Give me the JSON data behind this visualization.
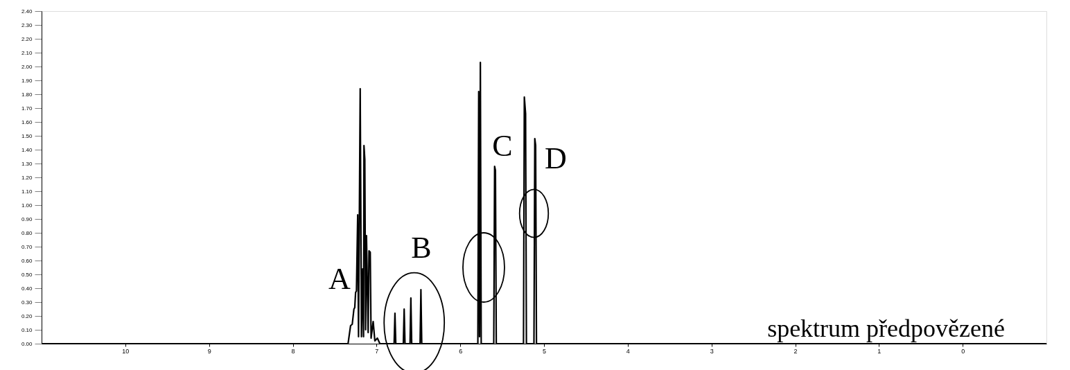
{
  "chart_data": {
    "type": "line",
    "x": [
      11,
      7.34,
      7.31,
      7.29,
      7.27,
      7.26,
      7.25,
      7.24,
      7.225,
      7.215,
      7.195,
      7.18,
      7.165,
      7.155,
      7.15,
      7.14,
      7.13,
      7.12,
      7.1,
      7.09,
      7.075,
      7.065,
      7.04,
      7.02,
      6.99,
      6.96,
      6.79,
      6.78,
      6.77,
      6.68,
      6.67,
      6.66,
      6.6,
      6.59,
      6.58,
      6.48,
      6.47,
      6.46,
      5.79,
      5.78,
      5.77,
      5.76,
      5.75,
      5.6,
      5.59,
      5.58,
      5.57,
      5.245,
      5.235,
      5.22,
      5.21,
      5.12,
      5.11,
      5.1,
      5.09,
      -1
    ],
    "series": [
      {
        "color": "#000000",
        "values": [
          0,
          0,
          0.13,
          0.14,
          0.25,
          0.26,
          0.37,
          0.38,
          0.93,
          0.05,
          1.84,
          0.05,
          0.54,
          0.05,
          1.43,
          1.33,
          0.1,
          0.78,
          0.08,
          0.67,
          0.66,
          0.04,
          0.16,
          0.02,
          0.04,
          0,
          0,
          0.22,
          0,
          0,
          0.25,
          0,
          0,
          0.33,
          0,
          0,
          0.39,
          0,
          0,
          1.82,
          0.05,
          2.03,
          0,
          0,
          1.28,
          1.25,
          0,
          0,
          1.78,
          1.66,
          0,
          0,
          1.48,
          1.43,
          0,
          0
        ]
      }
    ],
    "xlim": [
      11,
      -1
    ],
    "xticks": [
      10,
      9,
      8,
      7,
      6,
      5,
      4,
      3,
      2,
      1,
      0
    ],
    "ylim": [
      0,
      2.4
    ],
    "yticks": [
      {
        "value": 0,
        "label": "0.00"
      },
      {
        "value": 0.1,
        "label": "0.10"
      },
      {
        "value": 0.2,
        "label": "0.20"
      },
      {
        "value": 0.3,
        "label": "0.30"
      },
      {
        "value": 0.4,
        "label": "0.40"
      },
      {
        "value": 0.5,
        "label": "0.50"
      },
      {
        "value": 0.6,
        "label": "0.60"
      },
      {
        "value": 0.7,
        "label": "0.70"
      },
      {
        "value": 0.8,
        "label": "0.80"
      },
      {
        "value": 0.9,
        "label": "0.90"
      },
      {
        "value": 1.0,
        "label": "1.00"
      },
      {
        "value": 1.1,
        "label": "1.10"
      },
      {
        "value": 1.2,
        "label": "1.20"
      },
      {
        "value": 1.3,
        "label": "1.30"
      },
      {
        "value": 1.4,
        "label": "1.40"
      },
      {
        "value": 1.5,
        "label": "1.50"
      },
      {
        "value": 1.6,
        "label": "1.60"
      },
      {
        "value": 1.7,
        "label": "1.70"
      },
      {
        "value": 1.8,
        "label": "1.80"
      },
      {
        "value": 1.9,
        "label": "1.90"
      },
      {
        "value": 2.0,
        "label": "2.00"
      },
      {
        "value": 2.1,
        "label": "2.10"
      },
      {
        "value": 2.2,
        "label": "2.20"
      },
      {
        "value": 2.3,
        "label": "2.30"
      },
      {
        "value": 2.4,
        "label": "2.40"
      }
    ],
    "grid": false,
    "marker": "none",
    "line_style": "solid",
    "annotations": [
      "A",
      "B",
      "C",
      "D",
      "spektrum předpovězené"
    ]
  }
}
